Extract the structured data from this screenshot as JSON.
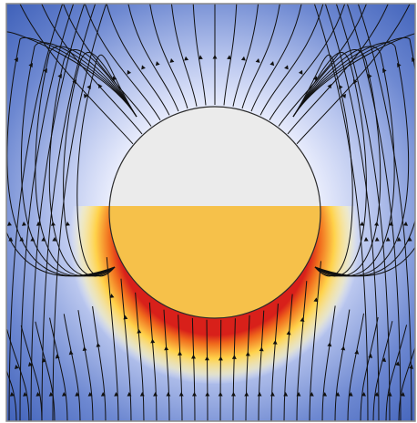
{
  "scene": {
    "description_tokens": [],
    "colors": {
      "field_far": "#3d5fb8",
      "field_mid": "#8ea3dd",
      "field_near": "#f4f6ff",
      "heat_inner": "#d8201a",
      "heat_mid": "#f06a1c",
      "heat_outer": "#ffe15a",
      "sphere_top": "#ebebeb",
      "sphere_bottom": "#f6c14a",
      "sphere_edge": "#3d3d3d",
      "streamline": "#111111",
      "frame": "#8a8a8a"
    },
    "interface_fraction": 0.45
  }
}
